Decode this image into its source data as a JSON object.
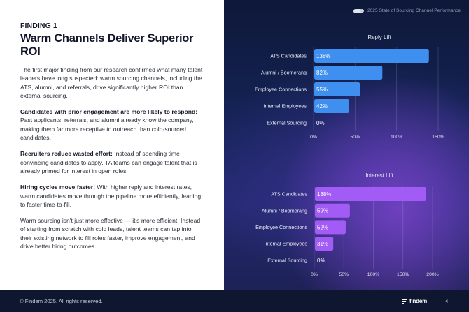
{
  "left": {
    "eyebrow": "FINDING 1",
    "title": "Warm Channels Deliver Superior ROI",
    "intro": "The first major finding from our research confirmed what many talent leaders have long suspected: warm sourcing channels, including the ATS, alumni, and referrals, drive significantly higher ROI than external sourcing.",
    "points": [
      {
        "lead": "Candidates with prior engagement are more likely to respond:",
        "text": " Past applicants, referrals, and alumni already know the company, making them far more receptive to outreach than cold-sourced candidates."
      },
      {
        "lead": "Recruiters reduce wasted effort:",
        "text": " Instead of spending time convincing candidates to apply, TA teams can engage talent that is already primed for interest in open roles."
      },
      {
        "lead": "Hiring cycles move faster:",
        "text": " With higher reply and interest rates, warm candidates move through the pipeline more efficiently, leading to faster time-to-fill."
      }
    ],
    "conclusion": "Warm sourcing isn't just more effective — it's more efficient. Instead of starting from scratch with cold leads, talent teams can tap into their existing network to fill roles faster, improve engagement, and drive better hiring outcomes."
  },
  "header": {
    "report_title": "2025 State of Sourcing Channel Performance",
    "tag_icon": "toggle-pill-icon"
  },
  "footer": {
    "copyright": "© Findem 2025. All rights reserved.",
    "logo_text": "findem",
    "page_number": "4"
  },
  "chart_data": [
    {
      "type": "bar",
      "orientation": "horizontal",
      "title": "Reply Lift",
      "categories": [
        "ATS Candidates",
        "Alumni / Boomerang",
        "Employee Connections",
        "Internal Employees",
        "External Sourcing"
      ],
      "values": [
        138,
        82,
        55,
        42,
        0
      ],
      "value_labels": [
        "138%",
        "82%",
        "55%",
        "42%",
        "0%"
      ],
      "xlim": [
        0,
        150
      ],
      "xticks": [
        0,
        50,
        100,
        150
      ],
      "xtick_labels": [
        "0%",
        "50%",
        "100%",
        "150%"
      ],
      "bar_color": "#3f8ff0",
      "grid": true
    },
    {
      "type": "bar",
      "orientation": "horizontal",
      "title": "Interest Lift",
      "categories": [
        "ATS Candidates",
        "Alumni / Boomerang",
        "Employee Connections",
        "Internal Employees",
        "External Sourcing"
      ],
      "values": [
        188,
        59,
        52,
        31,
        0
      ],
      "value_labels": [
        "188%",
        "59%",
        "52%",
        "31%",
        "0%"
      ],
      "xlim": [
        0,
        200
      ],
      "xticks": [
        0,
        50,
        100,
        150,
        200
      ],
      "xtick_labels": [
        "0%",
        "50%",
        "100%",
        "150%",
        "200%"
      ],
      "bar_color": "#a25cf5",
      "grid": true
    }
  ]
}
